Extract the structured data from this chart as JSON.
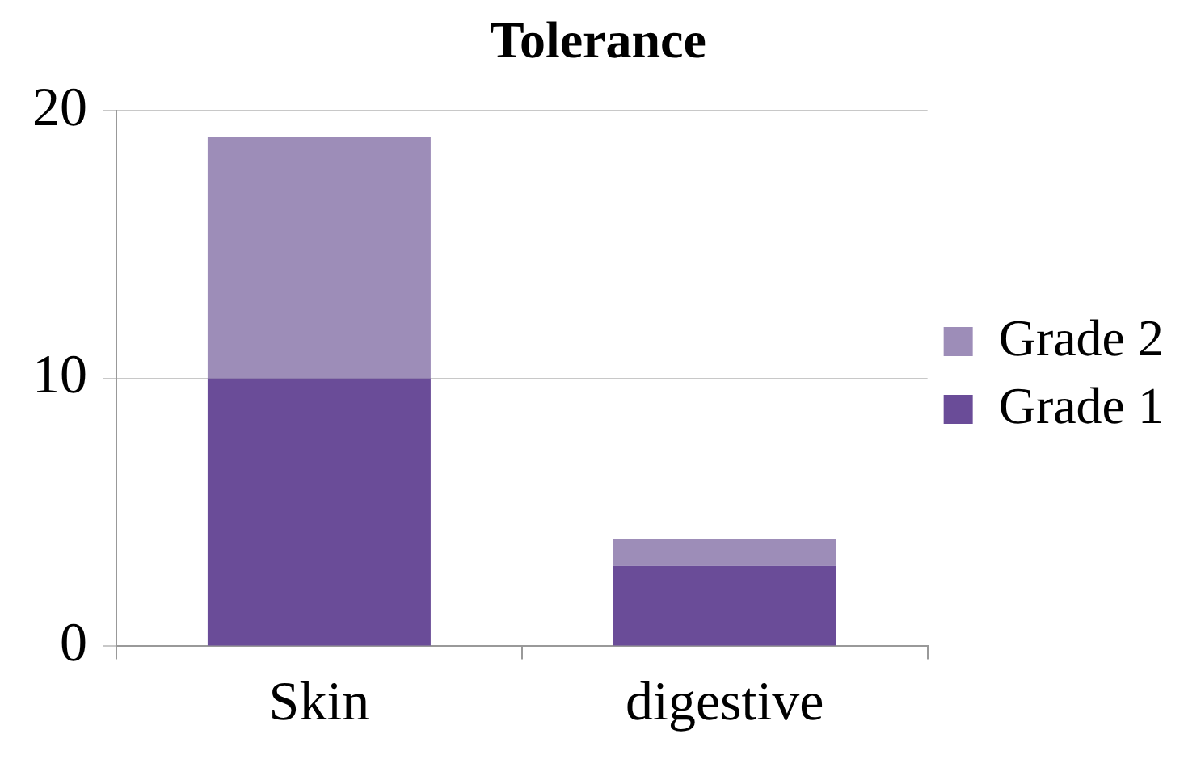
{
  "chart_data": {
    "type": "bar",
    "title": "Tolerance",
    "categories": [
      "Skin",
      "digestive"
    ],
    "stacked": true,
    "series": [
      {
        "name": "Grade 1",
        "color": "#6a4c98",
        "values": [
          10,
          3
        ]
      },
      {
        "name": "Grade 2",
        "color": "#9d8db8",
        "values": [
          9,
          1
        ]
      }
    ],
    "ylim": [
      0,
      20
    ],
    "yticks": [
      0,
      10,
      20
    ],
    "grid": "y",
    "legend": "right"
  }
}
